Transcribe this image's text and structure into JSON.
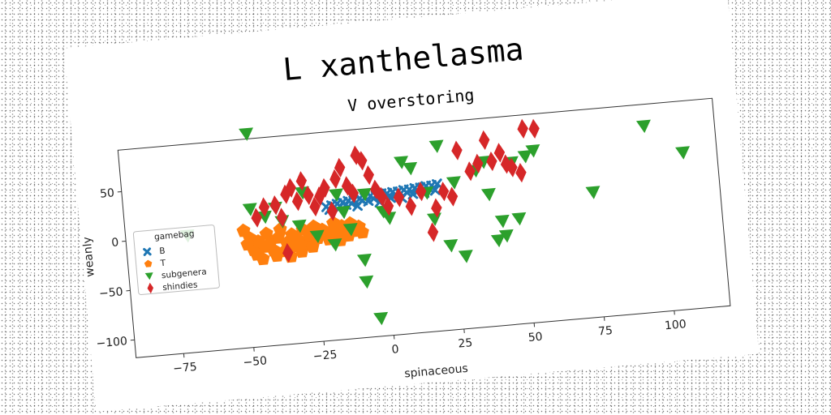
{
  "suptitle": "L xanthelasma",
  "chart_data": {
    "type": "scatter",
    "title": "V overstoring",
    "xlabel": "spinaceous",
    "ylabel": "weanly",
    "xlim": [
      -92,
      120
    ],
    "ylim": [
      -118,
      92
    ],
    "xticks": [
      -75,
      -50,
      -25,
      0,
      25,
      50,
      75,
      100
    ],
    "yticks": [
      50,
      0,
      -50,
      -100
    ],
    "grid": false,
    "legend": {
      "title": "gamebag",
      "placement": "left"
    },
    "series": [
      {
        "name": "B",
        "marker": "x",
        "color": "#1f77b4",
        "points": [
          [
            -20,
            17
          ],
          [
            -18,
            18
          ],
          [
            -16,
            19
          ],
          [
            -14,
            20
          ],
          [
            -12,
            21
          ],
          [
            -10,
            21
          ],
          [
            -8,
            22
          ],
          [
            -6,
            23
          ],
          [
            -4,
            24
          ],
          [
            -2,
            24
          ],
          [
            0,
            25
          ],
          [
            2,
            25
          ],
          [
            4,
            26
          ],
          [
            6,
            26
          ],
          [
            8,
            27
          ],
          [
            10,
            27
          ],
          [
            12,
            28
          ],
          [
            14,
            28
          ],
          [
            16,
            29
          ],
          [
            18,
            29
          ],
          [
            20,
            30
          ],
          [
            -15,
            16
          ],
          [
            -11,
            18
          ],
          [
            -7,
            20
          ],
          [
            -3,
            21
          ],
          [
            1,
            22
          ],
          [
            5,
            23
          ],
          [
            9,
            24
          ],
          [
            13,
            25
          ],
          [
            17,
            26
          ],
          [
            -19,
            14
          ],
          [
            -13,
            17
          ],
          [
            -5,
            19
          ],
          [
            3,
            20
          ],
          [
            11,
            22
          ],
          [
            -9,
            15
          ],
          [
            -1,
            17
          ],
          [
            7,
            19
          ],
          [
            15,
            22
          ],
          [
            19,
            24
          ]
        ]
      },
      {
        "name": "T",
        "marker": "pentagon",
        "color": "#ff7f0e",
        "points": [
          [
            -50,
            0
          ],
          [
            -48,
            -8
          ],
          [
            -47,
            -20
          ],
          [
            -46,
            -25
          ],
          [
            -45,
            -12
          ],
          [
            -44,
            -30
          ],
          [
            -43,
            -18
          ],
          [
            -42,
            -5
          ],
          [
            -40,
            -22
          ],
          [
            -39,
            -28
          ],
          [
            -38,
            -10
          ],
          [
            -37,
            -2
          ],
          [
            -36,
            -24
          ],
          [
            -35,
            -16
          ],
          [
            -34,
            -30
          ],
          [
            -33,
            -8
          ],
          [
            -32,
            -20
          ],
          [
            -31,
            -14
          ],
          [
            -30,
            -26
          ],
          [
            -29,
            -4
          ],
          [
            -28,
            -18
          ],
          [
            -27,
            -10
          ],
          [
            -26,
            -22
          ],
          [
            -25,
            -2
          ],
          [
            -24,
            -14
          ],
          [
            -22,
            -6
          ],
          [
            -20,
            -16
          ],
          [
            -19,
            -10
          ],
          [
            -18,
            0
          ],
          [
            -17,
            -12
          ],
          [
            -16,
            -18
          ],
          [
            -15,
            -4
          ],
          [
            -14,
            -8
          ],
          [
            -13,
            -14
          ],
          [
            -12,
            -2
          ],
          [
            -10,
            -10
          ],
          [
            -9,
            -6
          ],
          [
            -8,
            -12
          ],
          [
            -41,
            -15
          ],
          [
            -49,
            -14
          ]
        ]
      },
      {
        "name": "subgenera",
        "marker": "triangle-down",
        "color": "#2ca02c",
        "points": [
          [
            -46,
            97
          ],
          [
            -47,
            21
          ],
          [
            -70,
            0
          ],
          [
            -38,
            20
          ],
          [
            -30,
            0
          ],
          [
            -24,
            -12
          ],
          [
            -18,
            -22
          ],
          [
            -14,
            10
          ],
          [
            -12,
            -8
          ],
          [
            -8,
            -40
          ],
          [
            -8,
            -62
          ],
          [
            -6,
            26
          ],
          [
            -4,
            -100
          ],
          [
            2,
            0
          ],
          [
            8,
            55
          ],
          [
            11,
            48
          ],
          [
            16,
            22
          ],
          [
            18,
            -5
          ],
          [
            21,
            68
          ],
          [
            23,
            -33
          ],
          [
            26,
            30
          ],
          [
            28,
            -45
          ],
          [
            34,
            40
          ],
          [
            37,
            48
          ],
          [
            38,
            15
          ],
          [
            40,
            -32
          ],
          [
            42,
            -13
          ],
          [
            43,
            -28
          ],
          [
            47,
            45
          ],
          [
            48,
            -12
          ],
          [
            52,
            50
          ],
          [
            55,
            55
          ],
          [
            75,
            8
          ],
          [
            95,
            70
          ],
          [
            108,
            40
          ],
          [
            0,
            7
          ],
          [
            -16,
            28
          ],
          [
            -28,
            33
          ],
          [
            -36,
            6
          ],
          [
            -42,
            12
          ]
        ]
      },
      {
        "name": "shindies",
        "marker": "thin_diamond",
        "color": "#d62728",
        "points": [
          [
            -45,
            12
          ],
          [
            -42,
            22
          ],
          [
            -38,
            23
          ],
          [
            -36,
            10
          ],
          [
            -34,
            33
          ],
          [
            -32,
            39
          ],
          [
            -30,
            25
          ],
          [
            -28,
            45
          ],
          [
            -26,
            30
          ],
          [
            -24,
            18
          ],
          [
            -22,
            28
          ],
          [
            -20,
            36
          ],
          [
            -18,
            12
          ],
          [
            -16,
            44
          ],
          [
            -14,
            55
          ],
          [
            -12,
            36
          ],
          [
            -10,
            28
          ],
          [
            -8,
            66
          ],
          [
            -6,
            60
          ],
          [
            -4,
            45
          ],
          [
            -2,
            30
          ],
          [
            0,
            22
          ],
          [
            2,
            12
          ],
          [
            6,
            20
          ],
          [
            10,
            10
          ],
          [
            14,
            24
          ],
          [
            17,
            -18
          ],
          [
            19,
            6
          ],
          [
            22,
            22
          ],
          [
            25,
            16
          ],
          [
            28,
            62
          ],
          [
            32,
            40
          ],
          [
            35,
            47
          ],
          [
            38,
            70
          ],
          [
            40,
            48
          ],
          [
            43,
            56
          ],
          [
            45,
            44
          ],
          [
            47,
            40
          ],
          [
            50,
            34
          ],
          [
            52,
            78
          ],
          [
            56,
            77
          ],
          [
            -35,
            -26
          ]
        ]
      }
    ]
  }
}
